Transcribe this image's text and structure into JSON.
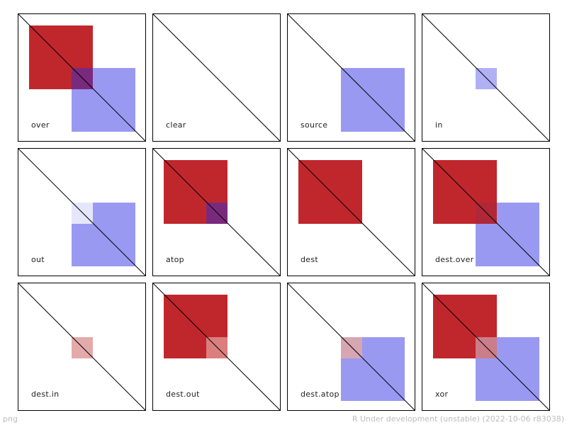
{
  "panels": [
    {
      "label": "over"
    },
    {
      "label": "clear"
    },
    {
      "label": "source"
    },
    {
      "label": "in"
    },
    {
      "label": "out"
    },
    {
      "label": "atop"
    },
    {
      "label": "dest"
    },
    {
      "label": "dest.over"
    },
    {
      "label": "dest.in"
    },
    {
      "label": "dest.out"
    },
    {
      "label": "dest.atop"
    },
    {
      "label": "xor"
    }
  ],
  "colors": {
    "red": "#c0272d",
    "blue": "#9999f2",
    "overlap_over": "#7a2a7d",
    "overlap_atop": "#7a2a7d",
    "in_blue": "#b0b0f5",
    "out_light": "#e6e6fb",
    "dest_in_pink": "#e4aaaa",
    "dest_out_pink": "#da7e7e",
    "dest_atop_pink": "#d7a6b3",
    "xor_pink": "#cb7e8a",
    "dest_over_overlap": "#b02838"
  },
  "footer": {
    "left": "png",
    "right": "R Under development (unstable) (2022-10-06 r83038)"
  }
}
